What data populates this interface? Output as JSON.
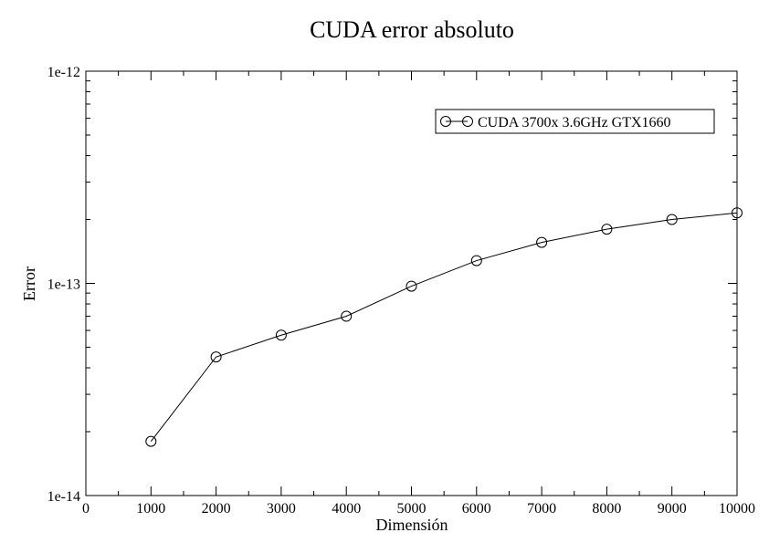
{
  "chart_data": {
    "type": "line",
    "title": "CUDA error absoluto",
    "xlabel": "Dimensión",
    "ylabel": "Error",
    "xlim": [
      0,
      10000
    ],
    "ylim": [
      1e-14,
      1e-12
    ],
    "yscale": "log",
    "grid": false,
    "legend_position": "top-right",
    "x_ticks": [
      0,
      1000,
      2000,
      3000,
      4000,
      5000,
      6000,
      7000,
      8000,
      9000,
      10000
    ],
    "x_tick_labels": [
      "0",
      "1000",
      "2000",
      "3000",
      "4000",
      "5000",
      "6000",
      "7000",
      "8000",
      "9000",
      "10000"
    ],
    "y_ticks": [
      1e-14,
      1e-13,
      1e-12
    ],
    "y_tick_labels": [
      "1e-14",
      "1e-13",
      "1e-12"
    ],
    "series": [
      {
        "name": "CUDA 3700x 3.6GHz GTX1660",
        "color": "#000000",
        "marker": "circle",
        "x": [
          1000,
          2000,
          3000,
          4000,
          5000,
          6000,
          7000,
          8000,
          9000,
          10000
        ],
        "y": [
          1.8e-14,
          4.5e-14,
          5.7e-14,
          7e-14,
          9.7e-14,
          1.28e-13,
          1.56e-13,
          1.8e-13,
          2e-13,
          2.15e-13
        ]
      }
    ]
  }
}
